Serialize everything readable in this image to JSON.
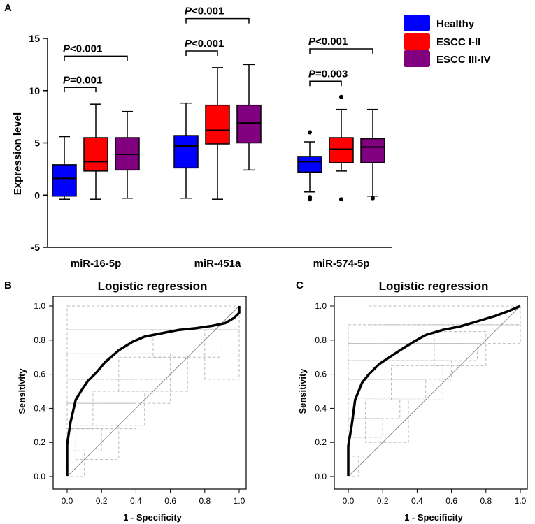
{
  "panel_labels": {
    "a": "A",
    "b": "B",
    "c": "C"
  },
  "colors": {
    "healthy": "#0000ff",
    "escc12": "#ff0000",
    "escc34": "#800080",
    "diag": "#888888",
    "grid": "#bbbbbb"
  },
  "chart_data": [
    {
      "type": "box",
      "title": "",
      "ylabel": "Expression level",
      "ylim": [
        -5,
        15
      ],
      "yticks": [
        -5,
        0,
        5,
        10,
        15
      ],
      "ytick_labels": [
        "-5",
        "0",
        "5",
        "10",
        "15"
      ],
      "categories": [
        "miR-16-5p",
        "miR-451a",
        "miR-574-5p"
      ],
      "legend": [
        {
          "name": "Healthy",
          "color": "#0000ff"
        },
        {
          "name": "ESCC I-II",
          "color": "#ff0000"
        },
        {
          "name": "ESCC III-IV",
          "color": "#800080"
        }
      ],
      "boxes": [
        {
          "category": "miR-16-5p",
          "group": "Healthy",
          "min": -0.4,
          "q1": -0.1,
          "median": 1.6,
          "q3": 2.9,
          "max": 5.6,
          "outliers": []
        },
        {
          "category": "miR-16-5p",
          "group": "ESCC I-II",
          "min": -0.4,
          "q1": 2.3,
          "median": 3.2,
          "q3": 5.5,
          "max": 8.7,
          "outliers": []
        },
        {
          "category": "miR-16-5p",
          "group": "ESCC III-IV",
          "min": -0.3,
          "q1": 2.4,
          "median": 3.9,
          "q3": 5.5,
          "max": 8.0,
          "outliers": []
        },
        {
          "category": "miR-451a",
          "group": "Healthy",
          "min": -0.3,
          "q1": 2.6,
          "median": 4.7,
          "q3": 5.7,
          "max": 8.8,
          "outliers": []
        },
        {
          "category": "miR-451a",
          "group": "ESCC I-II",
          "min": -0.4,
          "q1": 4.9,
          "median": 6.2,
          "q3": 8.6,
          "max": 12.2,
          "outliers": []
        },
        {
          "category": "miR-451a",
          "group": "ESCC III-IV",
          "min": 2.4,
          "q1": 5.0,
          "median": 6.9,
          "q3": 8.6,
          "max": 12.5,
          "outliers": []
        },
        {
          "category": "miR-574-5p",
          "group": "Healthy",
          "min": 0.3,
          "q1": 2.2,
          "median": 3.2,
          "q3": 3.7,
          "max": 5.1,
          "outliers": [
            6.0,
            -0.4,
            -0.2
          ]
        },
        {
          "category": "miR-574-5p",
          "group": "ESCC I-II",
          "min": 2.3,
          "q1": 3.1,
          "median": 4.4,
          "q3": 5.5,
          "max": 8.2,
          "outliers": [
            9.4,
            -0.4
          ]
        },
        {
          "category": "miR-574-5p",
          "group": "ESCC III-IV",
          "min": -0.1,
          "q1": 3.1,
          "median": 4.6,
          "q3": 5.4,
          "max": 8.2,
          "outliers": [
            -0.3
          ]
        }
      ],
      "annotations": [
        {
          "category": "miR-16-5p",
          "from": "Healthy",
          "to": "ESCC I-II",
          "y": 10.3,
          "p_label": "P",
          "p_value": "=0.001"
        },
        {
          "category": "miR-16-5p",
          "from": "Healthy",
          "to": "ESCC III-IV",
          "y": 13.3,
          "p_label": "P",
          "p_value": "<0.001"
        },
        {
          "category": "miR-451a",
          "from": "Healthy",
          "to": "ESCC I-II",
          "y": 13.8,
          "p_label": "P",
          "p_value": "<0.001"
        },
        {
          "category": "miR-451a",
          "from": "Healthy",
          "to": "ESCC III-IV",
          "y": 16.9,
          "p_label": "P",
          "p_value": "<0.001"
        },
        {
          "category": "miR-574-5p",
          "from": "Healthy",
          "to": "ESCC I-II",
          "y": 10.9,
          "p_label": "P",
          "p_value": "=0.003"
        },
        {
          "category": "miR-574-5p",
          "from": "Healthy",
          "to": "ESCC III-IV",
          "y": 14.0,
          "p_label": "P",
          "p_value": "<0.001"
        }
      ]
    },
    {
      "type": "line",
      "panel": "B",
      "title": "Logistic regression",
      "xlabel": "1 - Specificity",
      "ylabel": "Sensitivity",
      "xlim": [
        0,
        1
      ],
      "ylim": [
        0,
        1
      ],
      "ticks": [
        0.0,
        0.2,
        0.4,
        0.6,
        0.8,
        1.0
      ],
      "tick_labels": [
        "0.0",
        "0.2",
        "0.4",
        "0.6",
        "0.8",
        "1.0"
      ],
      "roc": [
        [
          0,
          0
        ],
        [
          0,
          0.19
        ],
        [
          0.02,
          0.32
        ],
        [
          0.05,
          0.45
        ],
        [
          0.08,
          0.5
        ],
        [
          0.12,
          0.56
        ],
        [
          0.17,
          0.61
        ],
        [
          0.22,
          0.67
        ],
        [
          0.3,
          0.74
        ],
        [
          0.38,
          0.79
        ],
        [
          0.45,
          0.82
        ],
        [
          0.55,
          0.84
        ],
        [
          0.65,
          0.86
        ],
        [
          0.75,
          0.87
        ],
        [
          0.85,
          0.885
        ],
        [
          0.92,
          0.9
        ],
        [
          0.97,
          0.93
        ],
        [
          1.0,
          0.96
        ],
        [
          1.0,
          1.0
        ]
      ],
      "diagonal": [
        [
          0,
          0
        ],
        [
          1,
          1
        ]
      ]
    },
    {
      "type": "line",
      "panel": "C",
      "title": "Logistic regression",
      "xlabel": "1 - Specificity",
      "ylabel": "Sensitivity",
      "xlim": [
        0,
        1
      ],
      "ylim": [
        0,
        1
      ],
      "ticks": [
        0.0,
        0.2,
        0.4,
        0.6,
        0.8,
        1.0
      ],
      "tick_labels": [
        "0.0",
        "0.2",
        "0.4",
        "0.6",
        "0.8",
        "1.0"
      ],
      "roc": [
        [
          0,
          0
        ],
        [
          0,
          0.18
        ],
        [
          0.02,
          0.3
        ],
        [
          0.04,
          0.45
        ],
        [
          0.08,
          0.55
        ],
        [
          0.12,
          0.6
        ],
        [
          0.18,
          0.66
        ],
        [
          0.24,
          0.7
        ],
        [
          0.3,
          0.74
        ],
        [
          0.38,
          0.79
        ],
        [
          0.45,
          0.83
        ],
        [
          0.55,
          0.86
        ],
        [
          0.65,
          0.88
        ],
        [
          0.75,
          0.91
        ],
        [
          0.85,
          0.94
        ],
        [
          0.93,
          0.97
        ],
        [
          1.0,
          1.0
        ]
      ],
      "diagonal": [
        [
          0,
          0
        ],
        [
          1,
          1
        ]
      ]
    }
  ]
}
